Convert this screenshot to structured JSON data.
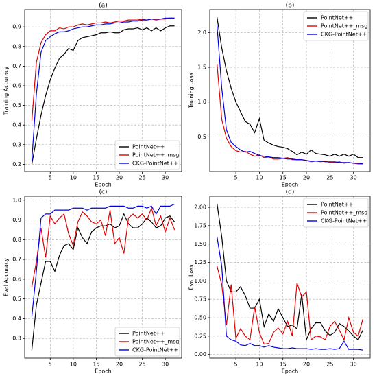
{
  "chart_data": [
    {
      "type": "line",
      "title": "(a)",
      "xlabel": "Epoch",
      "ylabel": "Training Accuracy",
      "legend": "lower right",
      "grid": true,
      "xlim": [
        -0.55,
        33.55
      ],
      "xticks": [
        5,
        10,
        15,
        20,
        25,
        30
      ],
      "ylim": [
        0.163,
        0.988
      ],
      "yticks": [
        0.2,
        0.3,
        0.4,
        0.5,
        0.6,
        0.7,
        0.8,
        0.9
      ],
      "x": [
        1,
        2,
        3,
        4,
        5,
        6,
        7,
        8,
        9,
        10,
        11,
        12,
        13,
        14,
        15,
        16,
        17,
        18,
        19,
        20,
        21,
        22,
        23,
        24,
        25,
        26,
        27,
        28,
        29,
        30,
        31,
        32
      ],
      "series": [
        {
          "name": "PointNet++",
          "color": "#000000",
          "values": [
            0.2,
            0.33,
            0.45,
            0.55,
            0.63,
            0.69,
            0.74,
            0.76,
            0.79,
            0.78,
            0.83,
            0.845,
            0.85,
            0.855,
            0.86,
            0.87,
            0.87,
            0.875,
            0.87,
            0.87,
            0.885,
            0.89,
            0.89,
            0.895,
            0.885,
            0.895,
            0.88,
            0.895,
            0.88,
            0.895,
            0.905,
            0.905
          ]
        },
        {
          "name": "PointNet++_msg",
          "color": "#e00000",
          "values": [
            0.42,
            0.72,
            0.82,
            0.86,
            0.88,
            0.88,
            0.895,
            0.89,
            0.9,
            0.9,
            0.91,
            0.915,
            0.91,
            0.915,
            0.92,
            0.92,
            0.925,
            0.92,
            0.925,
            0.93,
            0.93,
            0.935,
            0.935,
            0.935,
            0.94,
            0.935,
            0.94,
            0.935,
            0.94,
            0.94,
            0.945,
            0.945
          ]
        },
        {
          "name": "CKG-PointNet++",
          "color": "#0000e0",
          "values": [
            0.22,
            0.56,
            0.77,
            0.83,
            0.85,
            0.865,
            0.875,
            0.875,
            0.88,
            0.89,
            0.895,
            0.9,
            0.9,
            0.905,
            0.91,
            0.91,
            0.915,
            0.915,
            0.92,
            0.92,
            0.925,
            0.925,
            0.93,
            0.93,
            0.935,
            0.935,
            0.94,
            0.94,
            0.94,
            0.945,
            0.945,
            0.945
          ]
        }
      ]
    },
    {
      "type": "line",
      "title": "(b)",
      "xlabel": "Epoch",
      "ylabel": "Training Loss",
      "legend": "upper right",
      "grid": true,
      "xlim": [
        -0.55,
        33.55
      ],
      "xticks": [
        5,
        10,
        15,
        20,
        25,
        30
      ],
      "ylim": [
        0.0,
        2.33
      ],
      "yticks": [
        0.5,
        {
          "value": 1.0,
          "label": "1.0"
        },
        1.5,
        {
          "value": 2.0,
          "label": "2.0"
        }
      ],
      "x": [
        1,
        2,
        3,
        4,
        5,
        6,
        7,
        8,
        9,
        10,
        11,
        12,
        13,
        14,
        15,
        16,
        17,
        18,
        19,
        20,
        21,
        22,
        23,
        24,
        25,
        26,
        27,
        28,
        29,
        30,
        31,
        32
      ],
      "series": [
        {
          "name": "PointNet++",
          "color": "#000000",
          "values": [
            2.22,
            1.78,
            1.45,
            1.2,
            1.0,
            0.86,
            0.72,
            0.68,
            0.56,
            0.76,
            0.45,
            0.41,
            0.38,
            0.36,
            0.35,
            0.33,
            0.29,
            0.24,
            0.28,
            0.25,
            0.31,
            0.26,
            0.25,
            0.24,
            0.22,
            0.25,
            0.22,
            0.25,
            0.22,
            0.25,
            0.2,
            0.2
          ]
        },
        {
          "name": "PointNet++_msg",
          "color": "#e00000",
          "values": [
            1.55,
            0.75,
            0.48,
            0.36,
            0.3,
            0.28,
            0.29,
            0.25,
            0.22,
            0.24,
            0.2,
            0.21,
            0.18,
            0.18,
            0.19,
            0.2,
            0.17,
            0.17,
            0.17,
            0.16,
            0.14,
            0.15,
            0.14,
            0.15,
            0.13,
            0.13,
            0.14,
            0.12,
            0.13,
            0.12,
            0.11,
            0.11
          ]
        },
        {
          "name": "CKG-PointNet++",
          "color": "#0000e0",
          "values": [
            2.1,
            1.2,
            0.6,
            0.42,
            0.36,
            0.31,
            0.28,
            0.29,
            0.26,
            0.23,
            0.22,
            0.21,
            0.2,
            0.2,
            0.19,
            0.18,
            0.18,
            0.17,
            0.17,
            0.16,
            0.15,
            0.15,
            0.15,
            0.14,
            0.14,
            0.14,
            0.13,
            0.13,
            0.13,
            0.12,
            0.12,
            0.11
          ]
        }
      ]
    },
    {
      "type": "line",
      "title": "(c)",
      "xlabel": "Epoch",
      "ylabel": "Eval Accuracy",
      "legend": "lower right",
      "grid": true,
      "xlim": [
        -0.55,
        33.55
      ],
      "xticks": [
        5,
        10,
        15,
        20,
        25,
        30
      ],
      "ylim": [
        0.2,
        1.02
      ],
      "yticks": [
        0.3,
        0.4,
        0.5,
        0.6,
        0.7,
        0.8,
        0.9,
        {
          "value": 1.0,
          "label": "1.0"
        }
      ],
      "x": [
        1,
        2,
        3,
        4,
        5,
        6,
        7,
        8,
        9,
        10,
        11,
        12,
        13,
        14,
        15,
        16,
        17,
        18,
        19,
        20,
        21,
        22,
        23,
        24,
        25,
        26,
        27,
        28,
        29,
        30,
        31,
        32
      ],
      "series": [
        {
          "name": "PointNet++",
          "color": "#000000",
          "values": [
            0.24,
            0.47,
            0.58,
            0.69,
            0.69,
            0.64,
            0.72,
            0.77,
            0.78,
            0.75,
            0.86,
            0.81,
            0.78,
            0.84,
            0.86,
            0.87,
            0.87,
            0.88,
            0.86,
            0.87,
            0.93,
            0.88,
            0.86,
            0.86,
            0.88,
            0.91,
            0.89,
            0.86,
            0.87,
            0.91,
            0.92,
            0.89
          ]
        },
        {
          "name": "PointNet++_msg",
          "color": "#e00000",
          "values": [
            0.56,
            0.69,
            0.86,
            0.71,
            0.92,
            0.88,
            0.91,
            0.93,
            0.83,
            0.77,
            0.89,
            0.94,
            0.92,
            0.89,
            0.88,
            0.9,
            0.82,
            0.95,
            0.78,
            0.81,
            0.73,
            0.91,
            0.93,
            0.91,
            0.93,
            0.9,
            0.96,
            0.87,
            0.92,
            0.84,
            0.91,
            0.85
          ]
        },
        {
          "name": "CKG-PointNet++",
          "color": "#0000e0",
          "values": [
            0.41,
            0.64,
            0.91,
            0.93,
            0.93,
            0.95,
            0.95,
            0.95,
            0.95,
            0.96,
            0.96,
            0.96,
            0.95,
            0.96,
            0.96,
            0.96,
            0.96,
            0.97,
            0.97,
            0.97,
            0.97,
            0.96,
            0.96,
            0.97,
            0.97,
            0.96,
            0.97,
            0.93,
            0.97,
            0.97,
            0.97,
            0.98
          ]
        }
      ]
    },
    {
      "type": "line",
      "title": "(d)",
      "xlabel": "Epoch",
      "ylabel": "Eval Loss",
      "legend": "upper right",
      "grid": true,
      "xlim": [
        -0.55,
        33.55
      ],
      "xticks": [
        5,
        10,
        15,
        20,
        25,
        30
      ],
      "ylim": [
        -0.05,
        2.15
      ],
      "yticks": [
        {
          "value": 0,
          "label": "0.00"
        },
        {
          "value": 0.25,
          "label": "0.25"
        },
        {
          "value": 0.5,
          "label": "0.50"
        },
        {
          "value": 0.75,
          "label": "0.75"
        },
        {
          "value": 1,
          "label": "1.00"
        },
        {
          "value": 1.25,
          "label": "1.25"
        },
        {
          "value": 1.5,
          "label": "1.50"
        },
        {
          "value": 1.75,
          "label": "1.75"
        },
        {
          "value": 2,
          "label": "2.00"
        }
      ],
      "x": [
        1,
        2,
        3,
        4,
        5,
        6,
        7,
        8,
        9,
        10,
        11,
        12,
        13,
        14,
        15,
        16,
        17,
        18,
        19,
        20,
        21,
        22,
        23,
        24,
        25,
        26,
        27,
        28,
        29,
        30,
        31,
        32
      ],
      "series": [
        {
          "name": "PointNet++",
          "color": "#000000",
          "values": [
            2.05,
            1.6,
            1.0,
            0.85,
            0.85,
            0.92,
            0.8,
            0.63,
            0.63,
            0.75,
            0.38,
            0.55,
            0.45,
            0.62,
            0.5,
            0.38,
            0.4,
            0.35,
            0.82,
            0.2,
            0.35,
            0.43,
            0.43,
            0.32,
            0.26,
            0.3,
            0.42,
            0.38,
            0.32,
            0.25,
            0.2,
            0.33
          ]
        },
        {
          "name": "PointNet++_msg",
          "color": "#e00000",
          "values": [
            1.2,
            0.95,
            0.4,
            0.95,
            0.22,
            0.35,
            0.25,
            0.2,
            0.65,
            0.3,
            0.14,
            0.15,
            0.3,
            0.36,
            0.28,
            0.45,
            0.25,
            0.97,
            0.78,
            0.85,
            0.2,
            0.25,
            0.24,
            0.2,
            0.38,
            0.45,
            0.33,
            0.2,
            0.5,
            0.3,
            0.25,
            0.48
          ]
        },
        {
          "name": "CKG-PointNet++",
          "color": "#0000e0",
          "values": [
            1.6,
            1.2,
            0.25,
            0.2,
            0.18,
            0.13,
            0.12,
            0.15,
            0.12,
            0.12,
            0.1,
            0.12,
            0.1,
            0.09,
            0.08,
            0.08,
            0.09,
            0.08,
            0.08,
            0.08,
            0.07,
            0.08,
            0.07,
            0.07,
            0.08,
            0.07,
            0.08,
            0.18,
            0.07,
            0.07,
            0.07,
            0.06
          ]
        }
      ]
    }
  ]
}
